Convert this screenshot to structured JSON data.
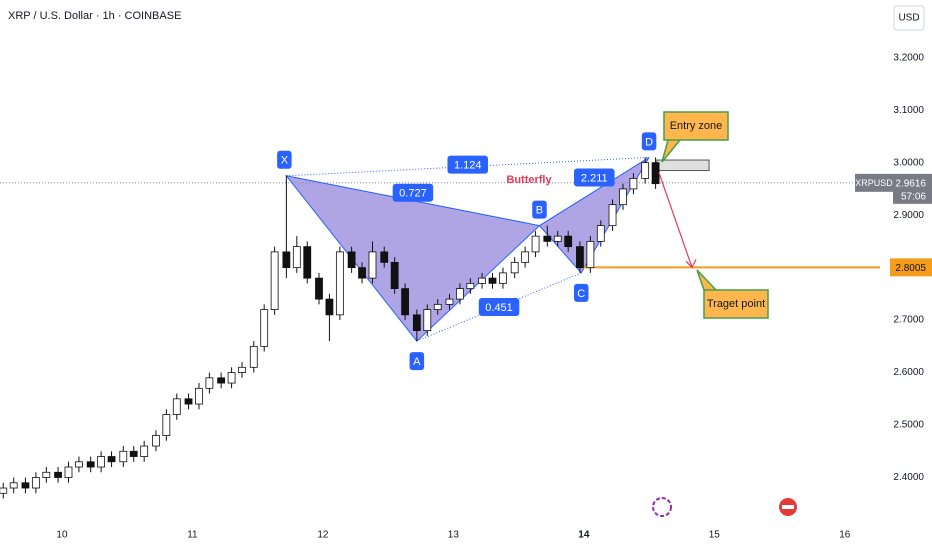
{
  "chart_data": {
    "type": "candlestick",
    "title": "XRP / U.S. Dollar · 1h · COINBASE",
    "currency": "USD",
    "symbol": "XRPUSD",
    "last_price": {
      "value": 2.9616,
      "label": "2.9616"
    },
    "countdown": "57:06",
    "up_color": "#ffffff",
    "down_color": "#111111",
    "wick_color": "#111111",
    "x": [
      9.55,
      9.63,
      9.72,
      9.8,
      9.88,
      9.97,
      10.05,
      10.13,
      10.22,
      10.3,
      10.38,
      10.47,
      10.55,
      10.63,
      10.72,
      10.8,
      10.88,
      10.97,
      11.05,
      11.13,
      11.22,
      11.3,
      11.38,
      11.47,
      11.55,
      11.63,
      11.72,
      11.8,
      11.88,
      11.97,
      12.05,
      12.13,
      12.22,
      12.3,
      12.38,
      12.47,
      12.55,
      12.63,
      12.72,
      12.8,
      12.88,
      12.97,
      13.05,
      13.13,
      13.22,
      13.3,
      13.38,
      13.47,
      13.55,
      13.63,
      13.72,
      13.8,
      13.88,
      13.97,
      14.05,
      14.13,
      14.22,
      14.3,
      14.38,
      14.47,
      14.55
    ],
    "open": [
      2.37,
      2.38,
      2.39,
      2.38,
      2.4,
      2.41,
      2.4,
      2.42,
      2.43,
      2.42,
      2.44,
      2.43,
      2.45,
      2.44,
      2.46,
      2.48,
      2.52,
      2.55,
      2.54,
      2.57,
      2.59,
      2.58,
      2.6,
      2.61,
      2.65,
      2.72,
      2.83,
      2.8,
      2.84,
      2.78,
      2.74,
      2.71,
      2.83,
      2.8,
      2.78,
      2.83,
      2.81,
      2.76,
      2.71,
      2.68,
      2.72,
      2.73,
      2.74,
      2.76,
      2.77,
      2.78,
      2.77,
      2.79,
      2.81,
      2.83,
      2.86,
      2.85,
      2.86,
      2.84,
      2.8,
      2.85,
      2.88,
      2.92,
      2.95,
      2.97,
      3.0
    ],
    "high": [
      2.39,
      2.4,
      2.4,
      2.41,
      2.42,
      2.42,
      2.43,
      2.44,
      2.44,
      2.45,
      2.45,
      2.46,
      2.46,
      2.47,
      2.49,
      2.53,
      2.56,
      2.56,
      2.58,
      2.6,
      2.6,
      2.61,
      2.62,
      2.66,
      2.73,
      2.84,
      2.975,
      2.86,
      2.85,
      2.79,
      2.75,
      2.84,
      2.84,
      2.81,
      2.85,
      2.84,
      2.82,
      2.77,
      2.72,
      2.73,
      2.74,
      2.75,
      2.77,
      2.78,
      2.79,
      2.79,
      2.8,
      2.82,
      2.84,
      2.87,
      2.88,
      2.87,
      2.87,
      2.85,
      2.86,
      2.89,
      2.93,
      2.96,
      2.98,
      3.01,
      3.01
    ],
    "low": [
      2.36,
      2.37,
      2.37,
      2.37,
      2.39,
      2.39,
      2.39,
      2.41,
      2.41,
      2.41,
      2.42,
      2.42,
      2.43,
      2.43,
      2.45,
      2.47,
      2.51,
      2.53,
      2.53,
      2.56,
      2.57,
      2.57,
      2.59,
      2.6,
      2.64,
      2.71,
      2.78,
      2.79,
      2.77,
      2.73,
      2.66,
      2.7,
      2.79,
      2.77,
      2.77,
      2.8,
      2.75,
      2.7,
      2.66,
      2.67,
      2.71,
      2.72,
      2.73,
      2.75,
      2.76,
      2.76,
      2.76,
      2.78,
      2.8,
      2.82,
      2.84,
      2.84,
      2.83,
      2.79,
      2.79,
      2.84,
      2.87,
      2.91,
      2.94,
      2.96,
      2.95
    ],
    "close": [
      2.38,
      2.39,
      2.38,
      2.4,
      2.41,
      2.4,
      2.42,
      2.43,
      2.42,
      2.44,
      2.43,
      2.45,
      2.44,
      2.46,
      2.48,
      2.52,
      2.55,
      2.54,
      2.57,
      2.59,
      2.58,
      2.6,
      2.61,
      2.65,
      2.72,
      2.83,
      2.8,
      2.84,
      2.78,
      2.74,
      2.71,
      2.83,
      2.8,
      2.78,
      2.83,
      2.81,
      2.76,
      2.71,
      2.68,
      2.72,
      2.73,
      2.74,
      2.76,
      2.77,
      2.78,
      2.77,
      2.79,
      2.81,
      2.83,
      2.86,
      2.85,
      2.86,
      2.84,
      2.8,
      2.85,
      2.88,
      2.92,
      2.95,
      2.97,
      3.0,
      2.96
    ],
    "xlim": [
      9.525,
      16.27
    ],
    "xticks": [
      10,
      11,
      12,
      13,
      14,
      15,
      16
    ],
    "ylim": [
      2.3,
      3.31
    ],
    "yticks": [
      {
        "value": 2.4,
        "label": "2.4000"
      },
      {
        "value": 2.5,
        "label": "2.5000"
      },
      {
        "value": 2.6,
        "label": "2.6000"
      },
      {
        "value": 2.7,
        "label": "2.7000"
      },
      {
        "value": 2.8,
        "label": "2.8000"
      },
      {
        "value": 2.9,
        "label": "2.9000"
      },
      {
        "value": 3.0,
        "label": "3.0000"
      },
      {
        "value": 3.1,
        "label": "3.1000"
      },
      {
        "value": 3.2,
        "label": "3.2000"
      }
    ],
    "pattern": {
      "name": "Butterfly",
      "color": "#2962ff",
      "fill": "#8f7fd8",
      "points": [
        {
          "label": "X",
          "x": 11.72,
          "y": 2.975
        },
        {
          "label": "A",
          "x": 12.72,
          "y": 2.66
        },
        {
          "label": "B",
          "x": 13.66,
          "y": 2.88
        },
        {
          "label": "C",
          "x": 13.98,
          "y": 2.79
        },
        {
          "label": "D",
          "x": 14.5,
          "y": 3.01
        }
      ],
      "ratios": [
        "1.124",
        "0.727",
        "0.451",
        "2.211"
      ]
    },
    "entry_zone": {
      "label": "Entry zone",
      "top": 3.005,
      "bottom": 2.985,
      "x_start": 14.56,
      "x_end": 14.96
    },
    "target": {
      "label": "Traget point",
      "value": 2.8005,
      "price_label": "2.8005",
      "x_start": 13.98,
      "color": "#f59c1a"
    }
  }
}
